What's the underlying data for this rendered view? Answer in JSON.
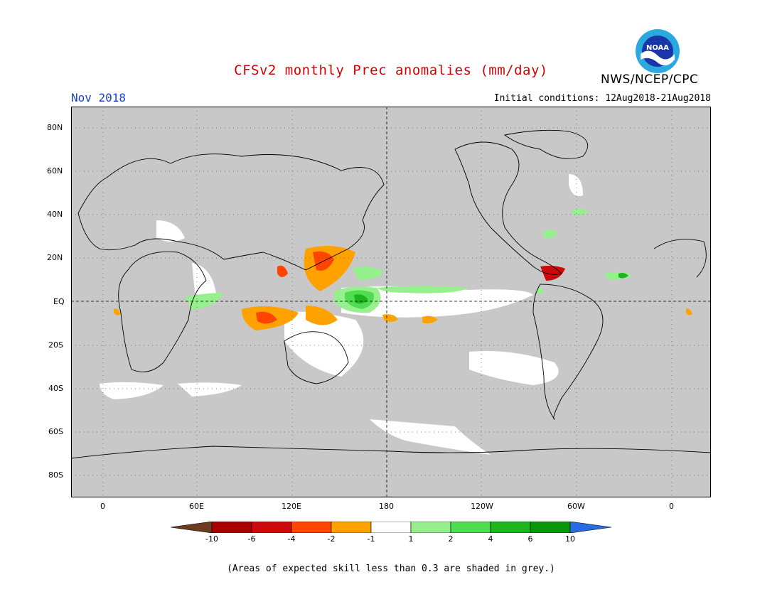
{
  "title": "CFSv2 monthly Prec anomalies (mm/day)",
  "period": "Nov 2018",
  "initial_conditions": "Initial conditions: 12Aug2018-21Aug2018",
  "agency": "NWS/NCEP/CPC",
  "logo_text": "NOAA",
  "lat_labels": [
    "80N",
    "60N",
    "40N",
    "20N",
    "EQ",
    "20S",
    "40S",
    "60S",
    "80S"
  ],
  "lon_labels": [
    "0",
    "60E",
    "120E",
    "180",
    "120W",
    "60W",
    "0"
  ],
  "colorbar": {
    "labels": [
      "-10",
      "-6",
      "-4",
      "-2",
      "-1",
      "1",
      "2",
      "4",
      "6",
      "10"
    ],
    "colors": [
      "#6e3b1e",
      "#a80000",
      "#cc0a0a",
      "#ff4500",
      "#ffa200",
      "#ffffff",
      "#96f08c",
      "#50dc50",
      "#1eb41e",
      "#0a960a",
      "#2a6be0"
    ]
  },
  "skill_mask_color": "#c8c8c8",
  "note": "(Areas of expected skill less than 0.3 are shaded in grey.)"
}
